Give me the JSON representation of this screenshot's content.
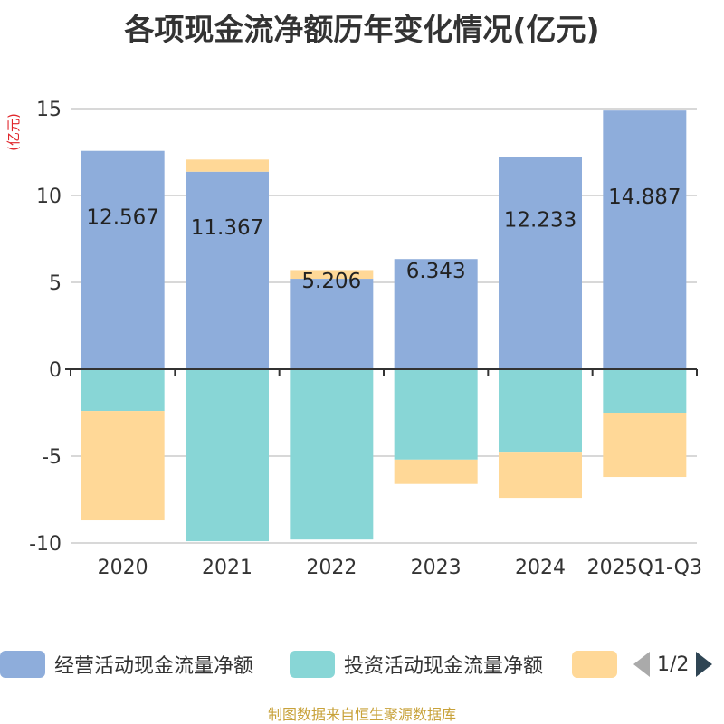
{
  "title": "各项现金流净额历年变化情况(亿元)",
  "source": "制图数据来自恒生聚源数据库",
  "legend": {
    "items": [
      {
        "label": "经营活动现金流量净额",
        "color": "#8eaddb"
      },
      {
        "label": "投资活动现金流量净额",
        "color": "#88d6d6"
      },
      {
        "label": "",
        "color": "#ffd897"
      }
    ],
    "page_label": "1/2"
  },
  "chart_data": {
    "type": "bar",
    "stacked": true,
    "title": "各项现金流净额历年变化情况(亿元)",
    "ylabel": "(亿元)",
    "ylim": [
      -10,
      15
    ],
    "yticks": [
      -10,
      -5,
      0,
      5,
      10,
      15
    ],
    "grid": true,
    "legend_position": "bottom",
    "categories": [
      "2020",
      "2021",
      "2022",
      "2023",
      "2024",
      "2025Q1-Q3"
    ],
    "series": [
      {
        "name": "经营活动现金流量净额",
        "color": "#8eaddb",
        "values": [
          12.567,
          11.367,
          5.206,
          6.343,
          12.233,
          14.887
        ],
        "labels": [
          "12.567",
          "11.367",
          "5.206",
          "6.343",
          "12.233",
          "14.887"
        ]
      },
      {
        "name": "投资活动现金流量净额",
        "color": "#88d6d6",
        "values": [
          -2.4,
          -9.9,
          -9.8,
          -5.2,
          -4.8,
          -2.5
        ]
      },
      {
        "name": "",
        "color": "#ffd897",
        "values": [
          -6.3,
          0.7,
          0.5,
          -1.4,
          -2.6,
          -3.7
        ]
      }
    ]
  }
}
